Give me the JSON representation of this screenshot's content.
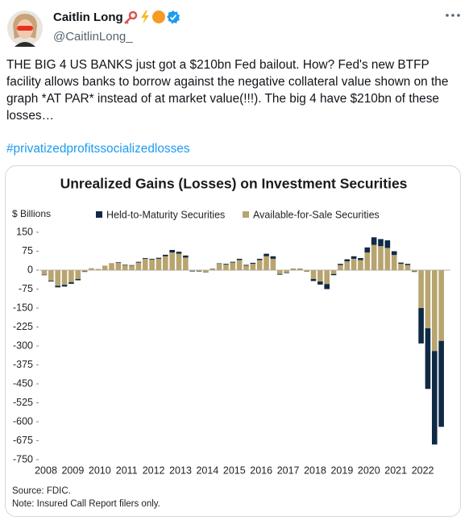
{
  "tweet": {
    "name": "Caitlin Long",
    "handle": "@CaitlinLong_",
    "text": "THE BIG 4 US BANKS just got a $210bn Fed bailout. How? Fed's new BTFP facility allows banks to borrow against the negative collateral value shown on the graph *AT PAR* instead of at market value(!!!). The big 4 have $210bn of these losses…",
    "hashtag": "#privatizedprofitssocializedlosses"
  },
  "chart_data": {
    "type": "bar",
    "stacked": true,
    "title": "Unrealized Gains (Losses) on Investment Securities",
    "y_label": "$ Billions",
    "source": "Source: FDIC.",
    "note": "Note: Insured Call Report filers only.",
    "categories": [
      "2008",
      null,
      null,
      null,
      "2009",
      null,
      null,
      null,
      "2010",
      null,
      null,
      null,
      "2011",
      null,
      null,
      null,
      "2012",
      null,
      null,
      null,
      "2013",
      null,
      null,
      null,
      "2014",
      null,
      null,
      null,
      "2015",
      null,
      null,
      null,
      "2016",
      null,
      null,
      null,
      "2017",
      null,
      null,
      null,
      "2018",
      null,
      null,
      null,
      "2019",
      null,
      null,
      null,
      "2020",
      null,
      null,
      null,
      "2021",
      null,
      null,
      null,
      "2022",
      null,
      null,
      null
    ],
    "series": [
      {
        "name": "Available-for-Sale Securities",
        "color": "#b8a46f",
        "values": [
          -18,
          -42,
          -62,
          -58,
          -48,
          -35,
          -5,
          8,
          5,
          18,
          28,
          30,
          20,
          18,
          30,
          45,
          42,
          45,
          55,
          70,
          65,
          50,
          -3,
          -3,
          -8,
          5,
          25,
          22,
          30,
          40,
          18,
          25,
          40,
          55,
          45,
          -15,
          -10,
          5,
          5,
          -5,
          -35,
          -45,
          -55,
          -15,
          20,
          35,
          45,
          40,
          70,
          100,
          95,
          88,
          60,
          25,
          20,
          -5,
          -150,
          -230,
          -320,
          -280
        ]
      },
      {
        "name": "Held-to-Maturity Securities",
        "color": "#0f2a44",
        "values": [
          -2,
          -3,
          -6,
          -7,
          -6,
          -5,
          -2,
          0,
          0,
          0,
          0,
          2,
          2,
          2,
          3,
          3,
          3,
          4,
          6,
          10,
          8,
          8,
          -2,
          -2,
          -1,
          1,
          2,
          3,
          3,
          5,
          3,
          4,
          5,
          10,
          10,
          -3,
          -2,
          1,
          1,
          -1,
          -8,
          -12,
          -20,
          -5,
          5,
          8,
          10,
          8,
          20,
          30,
          28,
          30,
          15,
          5,
          5,
          -2,
          -140,
          -240,
          -370,
          -340
        ]
      }
    ],
    "legend_order": [
      1,
      0
    ],
    "ylim": [
      -750,
      150
    ],
    "yticks": [
      150,
      75,
      0,
      -75,
      -150,
      -225,
      -300,
      -375,
      -450,
      -525,
      -600,
      -675,
      -750
    ]
  }
}
